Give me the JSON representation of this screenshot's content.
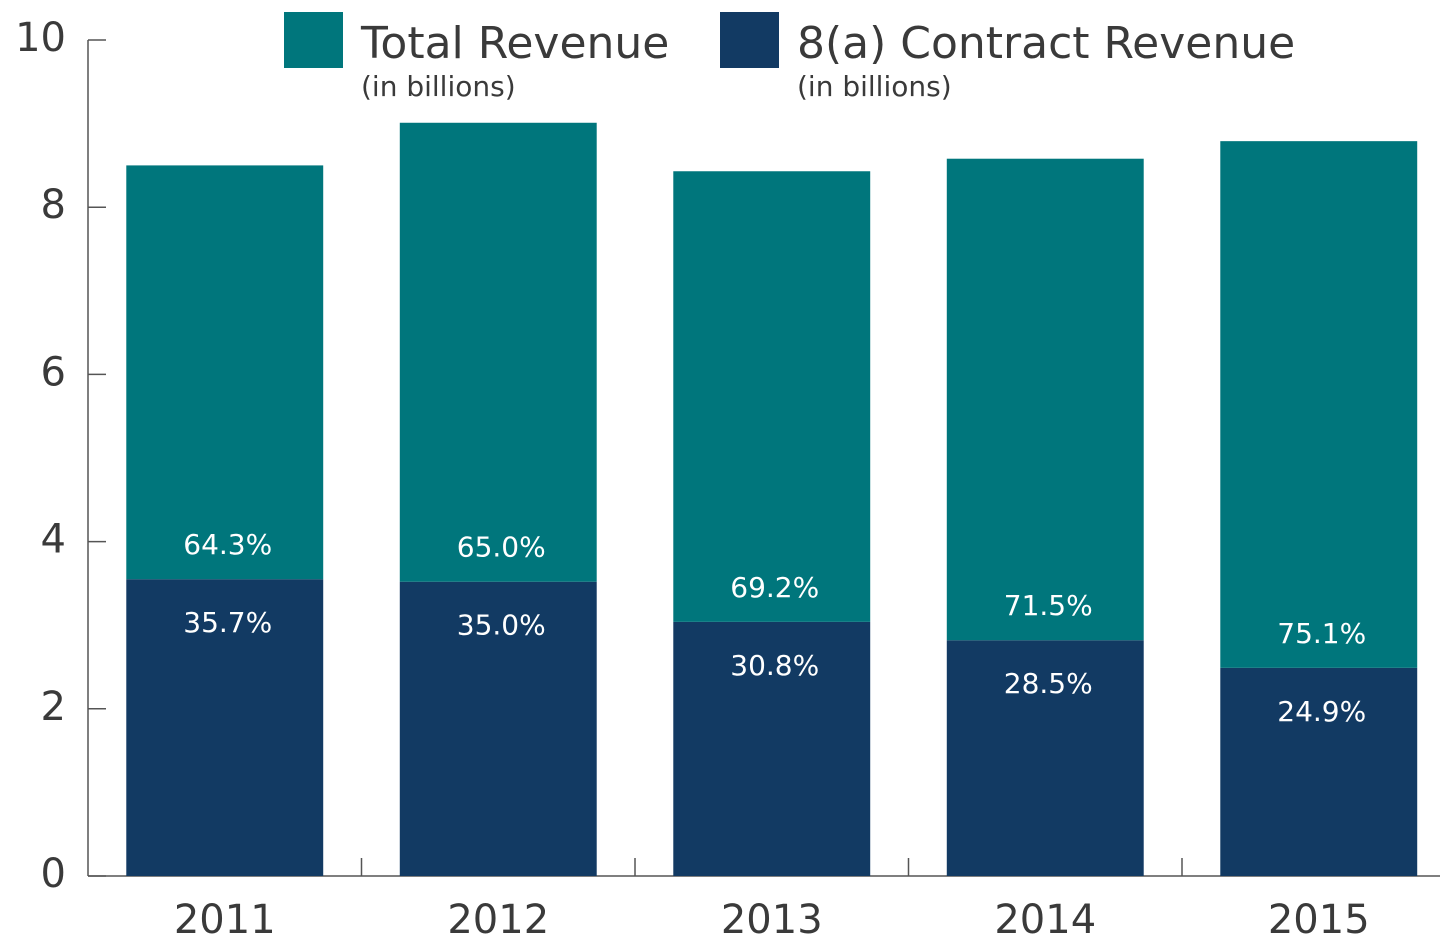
{
  "chart_data": {
    "type": "stacked_bar",
    "categories": [
      "2011",
      "2012",
      "2013",
      "2014",
      "2015"
    ],
    "series": [
      {
        "name": "Total Revenue",
        "unit": "(in billions)",
        "color": "#00767c",
        "values": [
          4.95,
          5.49,
          5.39,
          5.76,
          6.3
        ],
        "labels": [
          "64.3%",
          "65.0%",
          "69.2%",
          "71.5%",
          "75.1%"
        ]
      },
      {
        "name": "8(a) Contract Revenue",
        "unit": "(in billions)",
        "color": "#123a63",
        "values": [
          3.55,
          3.52,
          3.04,
          2.82,
          2.49
        ],
        "labels": [
          "35.7%",
          "35.0%",
          "30.8%",
          "28.5%",
          "24.9%"
        ]
      }
    ],
    "ylim": [
      0,
      10
    ],
    "yticks": [
      0,
      2,
      4,
      6,
      8,
      10
    ],
    "grid": false
  }
}
